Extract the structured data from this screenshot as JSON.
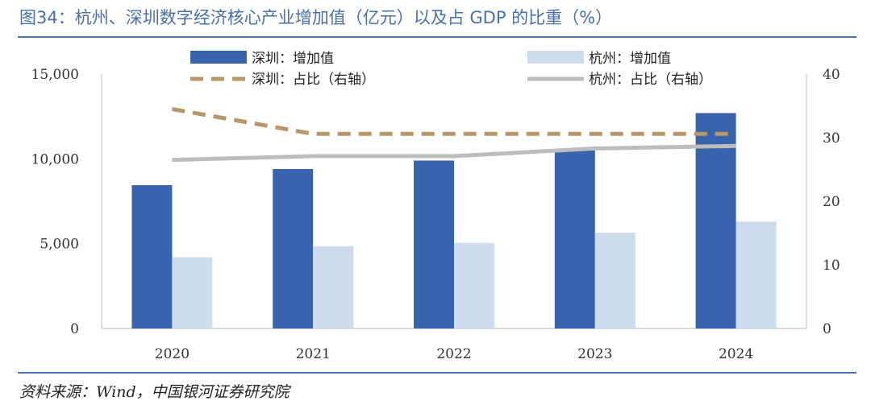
{
  "figure": {
    "title": "图34：杭州、深圳数字经济核心产业增加值（亿元）以及占 GDP 的比重（%）",
    "source": "资料来源：Wind，中国银河证券研究院"
  },
  "colors": {
    "sz_bar": "#3a63ad",
    "hz_bar": "#cfdcee",
    "sz_line": "#b8976a",
    "hz_line": "#bdbdbd",
    "rule": "#4f74b4"
  },
  "chart_data": {
    "type": "bar",
    "categories": [
      "2020",
      "2021",
      "2022",
      "2023",
      "2024"
    ],
    "series": [
      {
        "name": "深圳：增加值",
        "kind": "bar",
        "axis": "left",
        "values": [
          8450,
          9400,
          9900,
          10600,
          12700
        ]
      },
      {
        "name": "杭州：增加值",
        "kind": "bar",
        "axis": "left",
        "values": [
          4200,
          4850,
          5050,
          5650,
          6300
        ]
      },
      {
        "name": "深圳：占比（右轴）",
        "kind": "line",
        "style": "dashed",
        "axis": "right",
        "values": [
          34.5,
          30.6,
          30.6,
          30.6,
          30.6
        ]
      },
      {
        "name": "杭州：占比（右轴）",
        "kind": "line",
        "style": "solid",
        "axis": "right",
        "values": [
          26.5,
          27.1,
          27.1,
          28.3,
          28.7
        ]
      }
    ],
    "left_axis": {
      "ylim": [
        0,
        15000
      ],
      "ticks": [
        0,
        5000,
        10000,
        15000
      ],
      "tick_labels": [
        "0",
        "5,000",
        "10,000",
        "15,000"
      ]
    },
    "right_axis": {
      "ylim": [
        0,
        40
      ],
      "ticks": [
        0,
        10,
        20,
        30,
        40
      ],
      "tick_labels": [
        "0",
        "10",
        "20",
        "30",
        "40"
      ]
    },
    "legend": {
      "position": "top",
      "entries": [
        "深圳：增加值",
        "杭州：增加值",
        "深圳：占比（右轴）",
        "杭州：占比（右轴）"
      ]
    },
    "grid": false
  }
}
